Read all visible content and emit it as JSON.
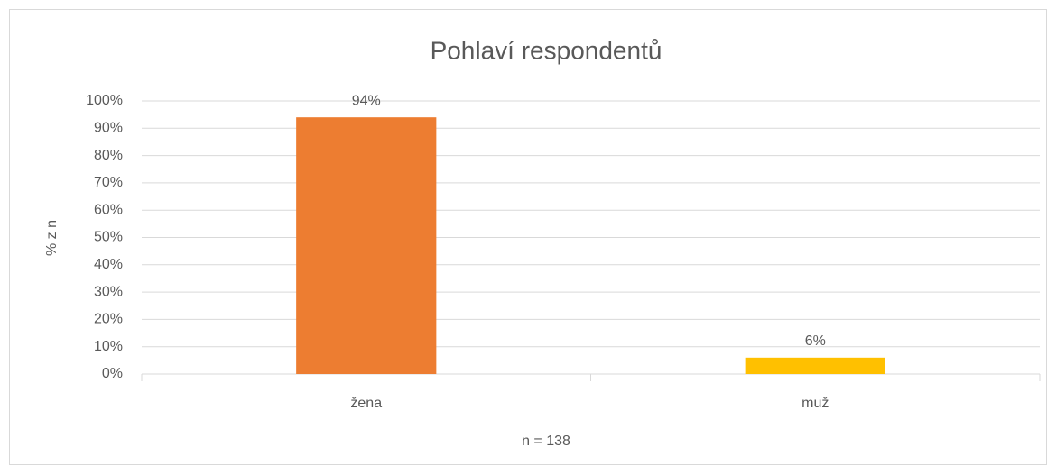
{
  "chart_data": {
    "type": "bar",
    "title": "Pohlaví respondentů",
    "categories": [
      "žena",
      "muž"
    ],
    "values": [
      94,
      6
    ],
    "value_labels": [
      "94%",
      "6%"
    ],
    "colors": [
      "#ED7D31",
      "#FFC000"
    ],
    "xlabel": "n = 138",
    "ylabel": "% z n",
    "ylim": [
      0,
      100
    ],
    "yticks": [
      {
        "value": 0,
        "label": "0%"
      },
      {
        "value": 10,
        "label": "10%"
      },
      {
        "value": 20,
        "label": "20%"
      },
      {
        "value": 30,
        "label": "30%"
      },
      {
        "value": 40,
        "label": "40%"
      },
      {
        "value": 50,
        "label": "50%"
      },
      {
        "value": 60,
        "label": "60%"
      },
      {
        "value": 70,
        "label": "70%"
      },
      {
        "value": 80,
        "label": "80%"
      },
      {
        "value": 90,
        "label": "90%"
      },
      {
        "value": 100,
        "label": "100%"
      }
    ],
    "grid": true
  }
}
